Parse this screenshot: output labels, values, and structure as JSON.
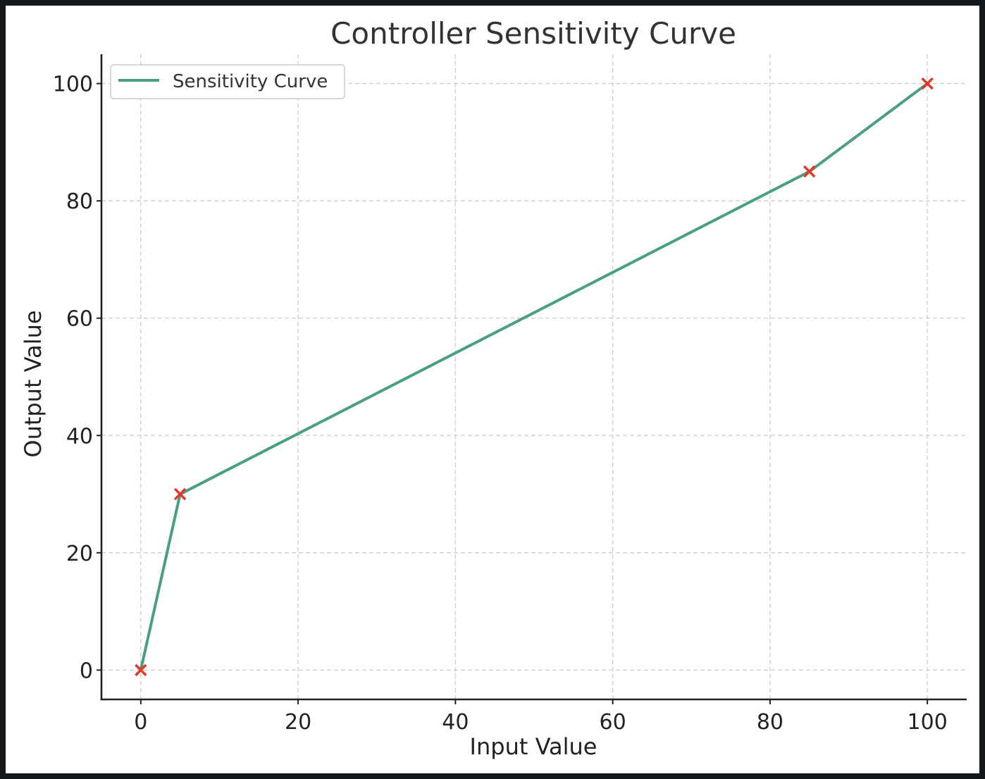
{
  "chart_data": {
    "type": "line",
    "title": "Controller Sensitivity Curve",
    "xlabel": "Input Value",
    "ylabel": "Output Value",
    "xlim": [
      -5,
      105
    ],
    "ylim": [
      -5,
      105
    ],
    "xticks": [
      0,
      20,
      40,
      60,
      80,
      100
    ],
    "yticks": [
      0,
      20,
      40,
      60,
      80,
      100
    ],
    "xtick_labels": [
      "0",
      "20",
      "40",
      "60",
      "80",
      "100"
    ],
    "ytick_labels": [
      "0",
      "20",
      "40",
      "60",
      "80",
      "100"
    ],
    "grid": true,
    "legend_position": "top-left",
    "series": [
      {
        "name": "Sensitivity Curve",
        "color": "#4a9e82",
        "x": [
          0,
          5,
          85,
          100
        ],
        "y": [
          0,
          30,
          85,
          100
        ]
      }
    ],
    "markers": {
      "style": "x",
      "color": "#e0392b",
      "x": [
        0,
        5,
        85,
        100
      ],
      "y": [
        0,
        30,
        85,
        100
      ]
    }
  }
}
